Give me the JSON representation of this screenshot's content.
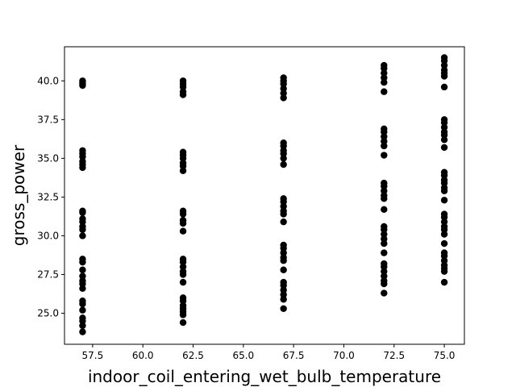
{
  "chart_data": {
    "type": "scatter",
    "title": "",
    "xlabel": "indoor_coil_entering_wet_bulb_temperature",
    "ylabel": "gross_power",
    "xlim": [
      56.1,
      76.0
    ],
    "ylim": [
      23.0,
      42.2
    ],
    "x_ticks": [
      57.5,
      60.0,
      62.5,
      65.0,
      67.5,
      70.0,
      72.5,
      75.0
    ],
    "x_tick_labels": [
      "57.5",
      "60.0",
      "62.5",
      "65.0",
      "67.5",
      "70.0",
      "72.5",
      "75.0"
    ],
    "y_ticks": [
      25.0,
      27.5,
      30.0,
      32.5,
      35.0,
      37.5,
      40.0
    ],
    "y_tick_labels": [
      "25.0",
      "27.5",
      "30.0",
      "32.5",
      "35.0",
      "37.5",
      "40.0"
    ],
    "grid": false,
    "marker_color": "#000000",
    "series": [
      {
        "points": [
          [
            57,
            40.0
          ],
          [
            57,
            39.9
          ],
          [
            57,
            39.8
          ],
          [
            57,
            39.7
          ],
          [
            57,
            35.5
          ],
          [
            57,
            35.3
          ],
          [
            57,
            35.1
          ],
          [
            57,
            34.8
          ],
          [
            57,
            34.6
          ],
          [
            57,
            34.4
          ],
          [
            57,
            31.6
          ],
          [
            57,
            31.5
          ],
          [
            57,
            31.1
          ],
          [
            57,
            30.9
          ],
          [
            57,
            30.6
          ],
          [
            57,
            30.4
          ],
          [
            57,
            30.0
          ],
          [
            57,
            28.5
          ],
          [
            57,
            28.3
          ],
          [
            57,
            27.8
          ],
          [
            57,
            27.4
          ],
          [
            57,
            27.1
          ],
          [
            57,
            26.9
          ],
          [
            57,
            26.6
          ],
          [
            57,
            25.8
          ],
          [
            57,
            25.6
          ],
          [
            57,
            25.2
          ],
          [
            57,
            24.7
          ],
          [
            57,
            24.5
          ],
          [
            57,
            24.2
          ],
          [
            57,
            23.8
          ],
          [
            62,
            40.0
          ],
          [
            62,
            39.8
          ],
          [
            62,
            39.6
          ],
          [
            62,
            39.3
          ],
          [
            62,
            39.1
          ],
          [
            62,
            35.4
          ],
          [
            62,
            35.2
          ],
          [
            62,
            35.0
          ],
          [
            62,
            34.7
          ],
          [
            62,
            34.5
          ],
          [
            62,
            34.2
          ],
          [
            62,
            31.6
          ],
          [
            62,
            31.4
          ],
          [
            62,
            31.0
          ],
          [
            62,
            30.8
          ],
          [
            62,
            30.3
          ],
          [
            62,
            28.5
          ],
          [
            62,
            28.3
          ],
          [
            62,
            28.0
          ],
          [
            62,
            27.7
          ],
          [
            62,
            27.5
          ],
          [
            62,
            27.0
          ],
          [
            62,
            26.0
          ],
          [
            62,
            25.8
          ],
          [
            62,
            25.5
          ],
          [
            62,
            25.3
          ],
          [
            62,
            25.1
          ],
          [
            62,
            24.9
          ],
          [
            62,
            24.4
          ],
          [
            67,
            40.2
          ],
          [
            67,
            40.0
          ],
          [
            67,
            39.8
          ],
          [
            67,
            39.5
          ],
          [
            67,
            39.2
          ],
          [
            67,
            38.9
          ],
          [
            67,
            36.0
          ],
          [
            67,
            35.8
          ],
          [
            67,
            35.5
          ],
          [
            67,
            35.3
          ],
          [
            67,
            35.0
          ],
          [
            67,
            34.6
          ],
          [
            67,
            32.4
          ],
          [
            67,
            32.2
          ],
          [
            67,
            31.9
          ],
          [
            67,
            31.6
          ],
          [
            67,
            31.4
          ],
          [
            67,
            30.9
          ],
          [
            67,
            29.4
          ],
          [
            67,
            29.2
          ],
          [
            67,
            28.9
          ],
          [
            67,
            28.6
          ],
          [
            67,
            28.4
          ],
          [
            67,
            27.8
          ],
          [
            67,
            27.0
          ],
          [
            67,
            26.8
          ],
          [
            67,
            26.5
          ],
          [
            67,
            26.2
          ],
          [
            67,
            25.9
          ],
          [
            67,
            25.3
          ],
          [
            72,
            41.0
          ],
          [
            72,
            40.8
          ],
          [
            72,
            40.5
          ],
          [
            72,
            40.2
          ],
          [
            72,
            39.9
          ],
          [
            72,
            39.3
          ],
          [
            72,
            36.9
          ],
          [
            72,
            36.7
          ],
          [
            72,
            36.4
          ],
          [
            72,
            36.1
          ],
          [
            72,
            35.8
          ],
          [
            72,
            35.2
          ],
          [
            72,
            33.4
          ],
          [
            72,
            33.2
          ],
          [
            72,
            32.9
          ],
          [
            72,
            32.6
          ],
          [
            72,
            32.4
          ],
          [
            72,
            31.7
          ],
          [
            72,
            30.6
          ],
          [
            72,
            30.4
          ],
          [
            72,
            30.1
          ],
          [
            72,
            29.8
          ],
          [
            72,
            29.5
          ],
          [
            72,
            28.9
          ],
          [
            72,
            28.2
          ],
          [
            72,
            28.0
          ],
          [
            72,
            27.7
          ],
          [
            72,
            27.4
          ],
          [
            72,
            27.1
          ],
          [
            72,
            26.9
          ],
          [
            72,
            26.3
          ],
          [
            75,
            41.5
          ],
          [
            75,
            41.3
          ],
          [
            75,
            41.0
          ],
          [
            75,
            40.7
          ],
          [
            75,
            40.5
          ],
          [
            75,
            40.3
          ],
          [
            75,
            39.6
          ],
          [
            75,
            37.5
          ],
          [
            75,
            37.3
          ],
          [
            75,
            37.0
          ],
          [
            75,
            36.7
          ],
          [
            75,
            36.5
          ],
          [
            75,
            36.2
          ],
          [
            75,
            35.7
          ],
          [
            75,
            34.1
          ],
          [
            75,
            33.9
          ],
          [
            75,
            33.6
          ],
          [
            75,
            33.4
          ],
          [
            75,
            33.1
          ],
          [
            75,
            32.9
          ],
          [
            75,
            32.3
          ],
          [
            75,
            31.4
          ],
          [
            75,
            31.2
          ],
          [
            75,
            30.9
          ],
          [
            75,
            30.6
          ],
          [
            75,
            30.4
          ],
          [
            75,
            30.1
          ],
          [
            75,
            29.5
          ],
          [
            75,
            28.9
          ],
          [
            75,
            28.7
          ],
          [
            75,
            28.4
          ],
          [
            75,
            28.1
          ],
          [
            75,
            27.9
          ],
          [
            75,
            27.7
          ],
          [
            75,
            27.0
          ]
        ]
      }
    ]
  }
}
